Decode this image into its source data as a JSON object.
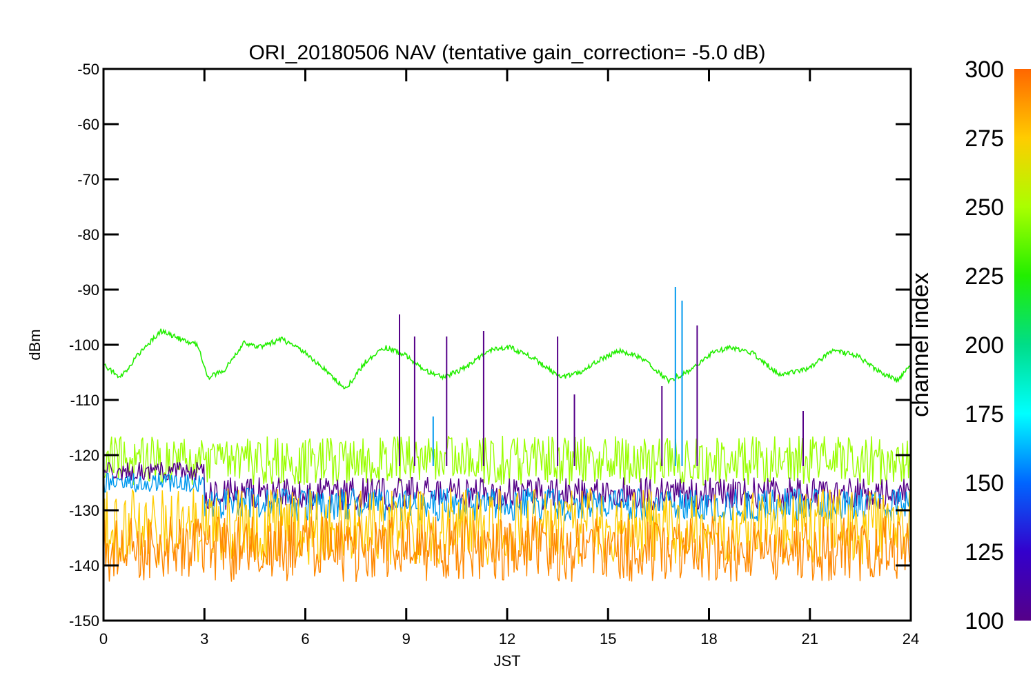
{
  "chart_data": {
    "type": "line",
    "title": "ORI_20180506 NAV (tentative gain_correction= -5.0 dB)",
    "xlabel": "JST",
    "ylabel": "dBm",
    "xlim": [
      0,
      24
    ],
    "ylim": [
      -150,
      -50
    ],
    "x_ticks": [
      0,
      3,
      6,
      9,
      12,
      15,
      18,
      21,
      24
    ],
    "y_ticks": [
      -50,
      -60,
      -70,
      -80,
      -90,
      -100,
      -110,
      -120,
      -130,
      -140,
      -150
    ],
    "x_tick_labels": [
      "0",
      "3",
      "6",
      "9",
      "12",
      "15",
      "18",
      "21",
      "24"
    ],
    "y_tick_labels": [
      "-50",
      "-60",
      "-70",
      "-80",
      "-90",
      "-100",
      "-110",
      "-120",
      "-130",
      "-140",
      "-150"
    ],
    "grid": false,
    "colorbar": {
      "label": "channel index",
      "range": [
        100,
        300
      ],
      "ticks": [
        100,
        125,
        150,
        175,
        200,
        225,
        250,
        275,
        300
      ],
      "tick_labels": [
        "100",
        "125",
        "150",
        "175",
        "200",
        "225",
        "250",
        "275",
        "300"
      ]
    },
    "series": [
      {
        "channel_index": 215,
        "color": "#22ee00",
        "x": [
          0,
          0.5,
          1,
          1.7,
          2.3,
          2.8,
          3.1,
          3.6,
          4.2,
          4.6,
          5.3,
          5.9,
          6.4,
          7.2,
          7.8,
          8.4,
          9.0,
          9.5,
          10.1,
          10.8,
          11.5,
          12.1,
          12.8,
          13.6,
          14.2,
          14.8,
          15.4,
          16.0,
          16.8,
          17.5,
          18.1,
          18.6,
          19.3,
          20.1,
          20.9,
          21.7,
          22.4,
          23.1,
          23.6,
          24
        ],
        "y": [
          -103.5,
          -106,
          -102,
          -97.5,
          -99,
          -100,
          -106,
          -104.5,
          -99.5,
          -100.5,
          -99,
          -101,
          -103.5,
          -108,
          -103,
          -100.5,
          -102,
          -104.5,
          -106,
          -104,
          -101,
          -100.5,
          -102.5,
          -106,
          -105,
          -102.5,
          -101,
          -102.5,
          -106.5,
          -104.5,
          -101.5,
          -100.5,
          -101.5,
          -105.5,
          -104.5,
          -101,
          -102,
          -105,
          -106.5,
          -103.5
        ]
      },
      {
        "channel_index": 260,
        "color": "#99ff00",
        "band": "upper",
        "y_center": -121,
        "y_spread": 4.5
      },
      {
        "channel_index": 110,
        "color": "#550088",
        "band": "mid",
        "y_center": -127,
        "y_spread": 3
      },
      {
        "channel_index": 160,
        "color": "#0099ee",
        "band": "mid",
        "y_center": -129,
        "y_spread": 3
      },
      {
        "channel_index": 285,
        "color": "#ffcc00",
        "band": "lower",
        "y_center": -133,
        "y_spread": 7
      },
      {
        "channel_index": 300,
        "color": "#ff8800",
        "band": "lower",
        "y_center": -137,
        "y_spread": 6
      }
    ],
    "spikes": [
      {
        "x": 8.8,
        "y": -94.5,
        "color": "#550088"
      },
      {
        "x": 9.25,
        "y": -98.5,
        "color": "#550088"
      },
      {
        "x": 9.8,
        "y": -113,
        "color": "#0099ee"
      },
      {
        "x": 10.2,
        "y": -98.5,
        "color": "#550088"
      },
      {
        "x": 11.3,
        "y": -97.5,
        "color": "#550088"
      },
      {
        "x": 13.5,
        "y": -98.5,
        "color": "#550088"
      },
      {
        "x": 14.0,
        "y": -109,
        "color": "#550088"
      },
      {
        "x": 16.6,
        "y": -107.5,
        "color": "#550088"
      },
      {
        "x": 17.0,
        "y": -89.5,
        "color": "#0099ee"
      },
      {
        "x": 17.2,
        "y": -92,
        "color": "#0099ee"
      },
      {
        "x": 17.65,
        "y": -96.5,
        "color": "#550088"
      },
      {
        "x": 20.8,
        "y": -112,
        "color": "#550088"
      }
    ]
  }
}
